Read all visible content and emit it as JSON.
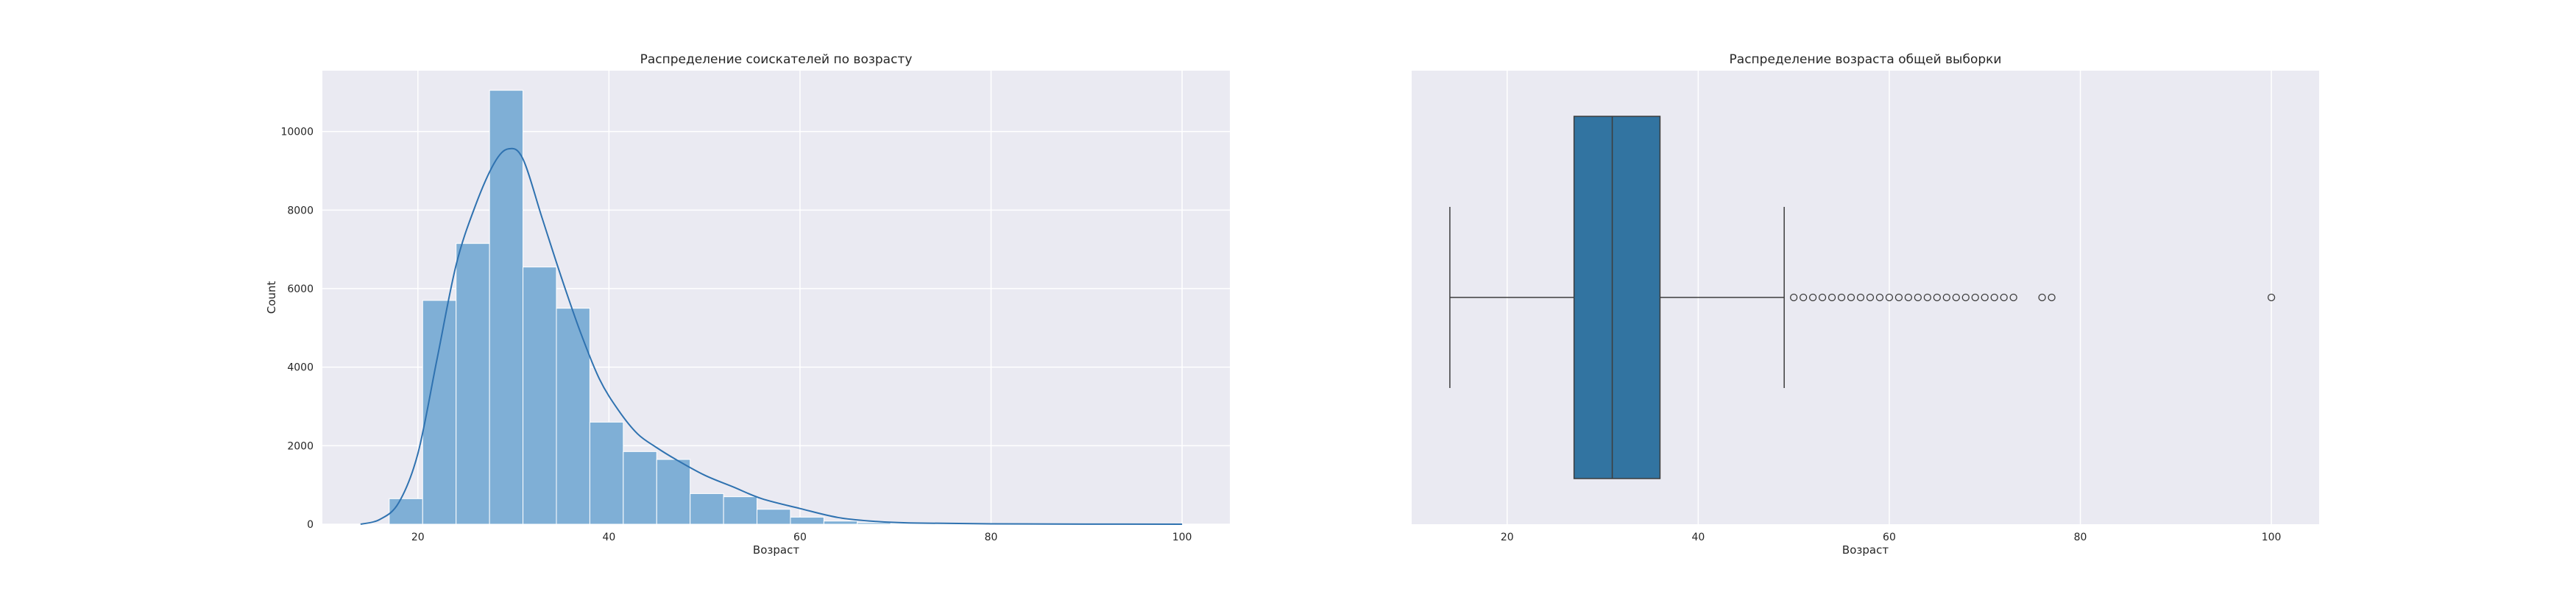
{
  "chart_data": [
    {
      "type": "bar",
      "title": "Распределение соискателей по возрасту",
      "xlabel": "Возраст",
      "ylabel": "Count",
      "xlim": [
        10,
        105
      ],
      "ylim": [
        0,
        11550
      ],
      "grid": true,
      "xticks": [
        20,
        40,
        60,
        80,
        100
      ],
      "yticks": [
        0,
        2000,
        4000,
        6000,
        8000,
        10000
      ],
      "bin_edges": [
        17,
        20.5,
        24,
        27.5,
        31,
        34.5,
        38,
        41.5,
        45,
        48.5,
        52,
        55.5,
        59,
        62.5,
        66,
        69.5,
        73,
        76.5,
        80,
        83.5,
        87,
        90.5,
        94,
        97.5,
        101
      ],
      "values": [
        650,
        5700,
        7150,
        11050,
        6550,
        5500,
        2600,
        1850,
        1650,
        780,
        700,
        380,
        180,
        80,
        40,
        20,
        10,
        5,
        3,
        2,
        1,
        1,
        1,
        1
      ],
      "color": "#7fafd6",
      "kde": {
        "x": [
          14,
          16,
          18,
          20,
          22,
          24,
          26,
          28,
          29.5,
          31,
          33,
          35,
          37,
          39,
          41,
          43,
          45,
          47,
          50,
          53,
          56,
          60,
          64,
          68,
          72,
          80,
          90,
          100
        ],
        "y": [
          0,
          120,
          550,
          1800,
          4200,
          6600,
          8100,
          9200,
          9560,
          9300,
          7800,
          6300,
          4900,
          3700,
          2900,
          2300,
          1950,
          1650,
          1250,
          950,
          650,
          400,
          170,
          70,
          30,
          10,
          3,
          0
        ],
        "color": "#2f72b0"
      }
    },
    {
      "type": "box",
      "title": "Распределение возраста общей выборки",
      "xlabel": "Возраст",
      "xlim": [
        10,
        105
      ],
      "grid": true,
      "xticks": [
        20,
        40,
        60,
        80,
        100
      ],
      "min": 14,
      "q1": 27,
      "median": 31,
      "q3": 36,
      "max": 49,
      "outliers": [
        50,
        51,
        52,
        53,
        54,
        55,
        56,
        57,
        58,
        59,
        60,
        61,
        62,
        63,
        64,
        65,
        66,
        67,
        68,
        69,
        70,
        71,
        72,
        73,
        76,
        77,
        100
      ],
      "color": "#3274a1"
    }
  ]
}
